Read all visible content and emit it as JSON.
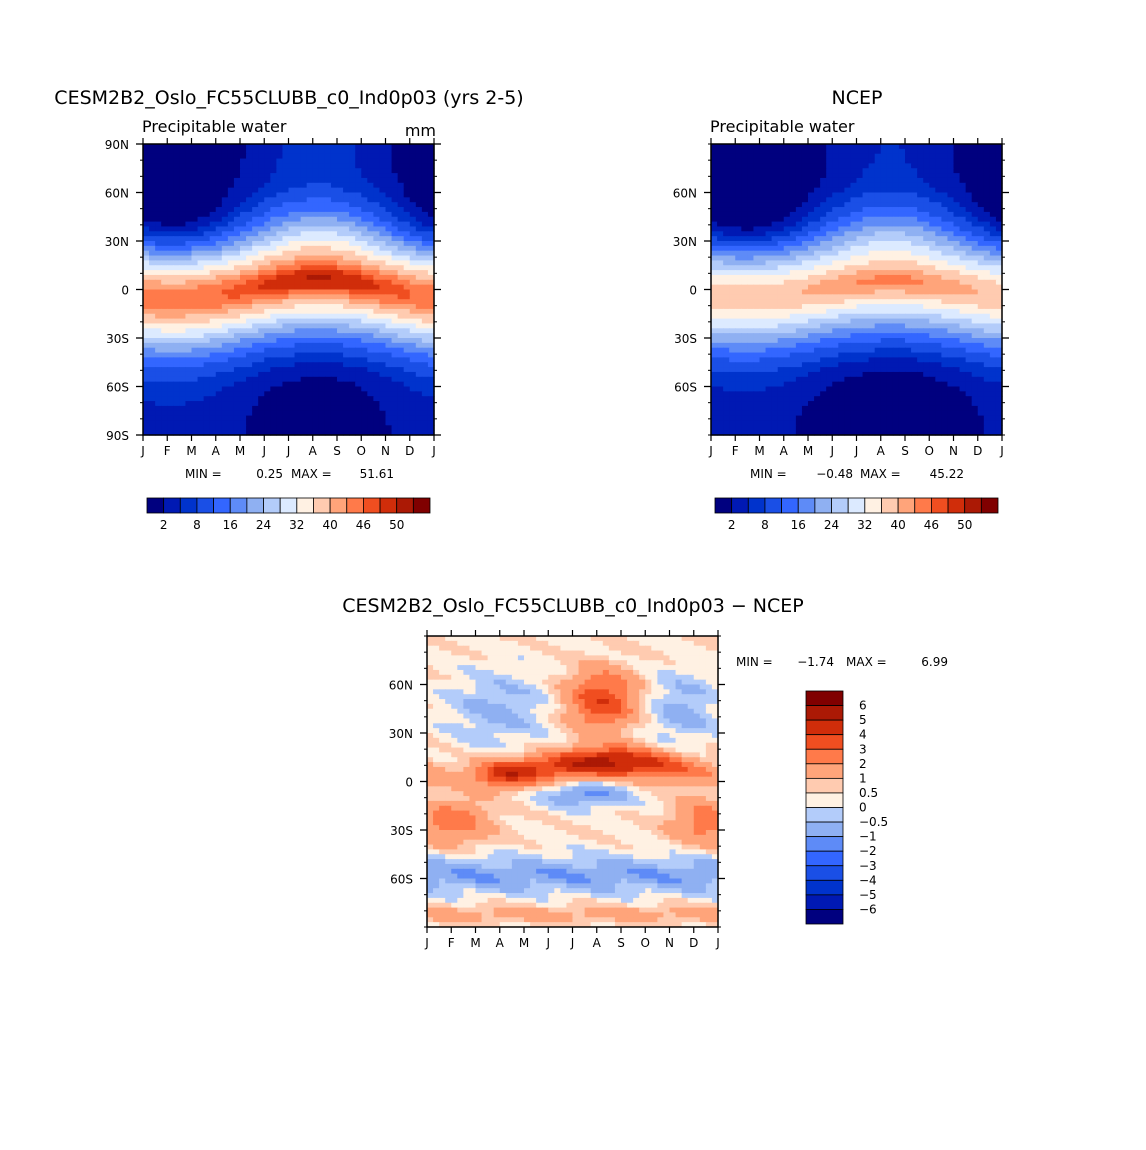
{
  "colors": {
    "abs_scale": [
      "#00007f",
      "#0019b3",
      "#0033cc",
      "#1a4fe6",
      "#3366ff",
      "#5e8bf7",
      "#8fb0f2",
      "#b3ccfa",
      "#dceaff",
      "#fff1e3",
      "#ffcbb0",
      "#ffa47a",
      "#ff7a4a",
      "#f04e20",
      "#d02d0a",
      "#ab1905",
      "#800000"
    ],
    "diff_scale": [
      "#00007f",
      "#0019b3",
      "#0033cc",
      "#1a4fe6",
      "#3366ff",
      "#5e8bf7",
      "#8fb0f2",
      "#b3ccfa",
      "#dceaff",
      "#fff1e3",
      "#ffcbb0",
      "#ffa47a",
      "#ff7a4a",
      "#f04e20",
      "#d02d0a",
      "#ab1905",
      "#800000"
    ]
  },
  "chart_data": [
    {
      "type": "heatmap",
      "title": "CESM2B2_Oslo_FC55CLUBB_c0_Ind0p03 (yrs 2-5)",
      "subtitle": "Precipitable water",
      "units": "mm",
      "x_ticks": [
        "J",
        "F",
        "M",
        "A",
        "M",
        "J",
        "J",
        "A",
        "S",
        "O",
        "N",
        "D",
        "J"
      ],
      "y_ticks": [
        "90N",
        "60N",
        "30N",
        "0",
        "30S",
        "60S",
        "90S"
      ],
      "y_values": [
        90,
        60,
        30,
        0,
        -30,
        -60,
        -90
      ],
      "ylim": [
        -90,
        90
      ],
      "min_max": {
        "label_min": "MIN =",
        "min": "0.25",
        "label_max": "MAX =",
        "max": "51.61"
      },
      "colorbar_labels": [
        "2",
        "8",
        "16",
        "24",
        "32",
        "40",
        "46",
        "50"
      ],
      "field": {
        "peak": 51.61,
        "base": 2,
        "center_lat_amp": 6,
        "peak_month": 7.2,
        "polar_n_seasonal": 5,
        "polar_s_seasonal": 2
      }
    },
    {
      "type": "heatmap",
      "title": "NCEP",
      "subtitle": "Precipitable water",
      "units": "",
      "x_ticks": [
        "J",
        "F",
        "M",
        "A",
        "M",
        "J",
        "J",
        "A",
        "S",
        "O",
        "N",
        "D",
        "J"
      ],
      "y_ticks": [
        "60N",
        "30N",
        "0",
        "30S",
        "60S"
      ],
      "y_values": [
        60,
        30,
        0,
        -30,
        -60
      ],
      "ylim": [
        -90,
        90
      ],
      "min_max": {
        "label_min": "MIN =",
        "min": "−0.48",
        "label_max": "MAX =",
        "max": "45.22"
      },
      "colorbar_labels": [
        "2",
        "8",
        "16",
        "24",
        "32",
        "40",
        "46",
        "50"
      ],
      "field": {
        "peak": 45.22,
        "base": 1,
        "center_lat_amp": 5,
        "peak_month": 7.4,
        "polar_n_seasonal": 5,
        "polar_s_seasonal": 2
      }
    },
    {
      "type": "heatmap",
      "title": "CESM2B2_Oslo_FC55CLUBB_c0_Ind0p03 − NCEP",
      "subtitle": "",
      "units": "",
      "x_ticks": [
        "J",
        "F",
        "M",
        "A",
        "M",
        "J",
        "J",
        "A",
        "S",
        "O",
        "N",
        "D",
        "J"
      ],
      "y_ticks": [
        "60N",
        "30N",
        "0",
        "30S",
        "60S"
      ],
      "y_values": [
        60,
        30,
        0,
        -30,
        -60
      ],
      "ylim": [
        -90,
        90
      ],
      "min_max": {
        "label_min": "MIN =",
        "min": "−1.74",
        "label_max": "MAX =",
        "max": "6.99"
      },
      "colorbar_labels": [
        "6",
        "5",
        "4",
        "3",
        "2",
        "1",
        "0.5",
        "0",
        "−0.5",
        "−1",
        "−2",
        "−3",
        "−4",
        "−5",
        "−6"
      ],
      "levels": [
        -6,
        -5,
        -4,
        -3,
        -2,
        -1,
        -0.5,
        0,
        0.5,
        1,
        2,
        3,
        4,
        5,
        6
      ]
    }
  ]
}
